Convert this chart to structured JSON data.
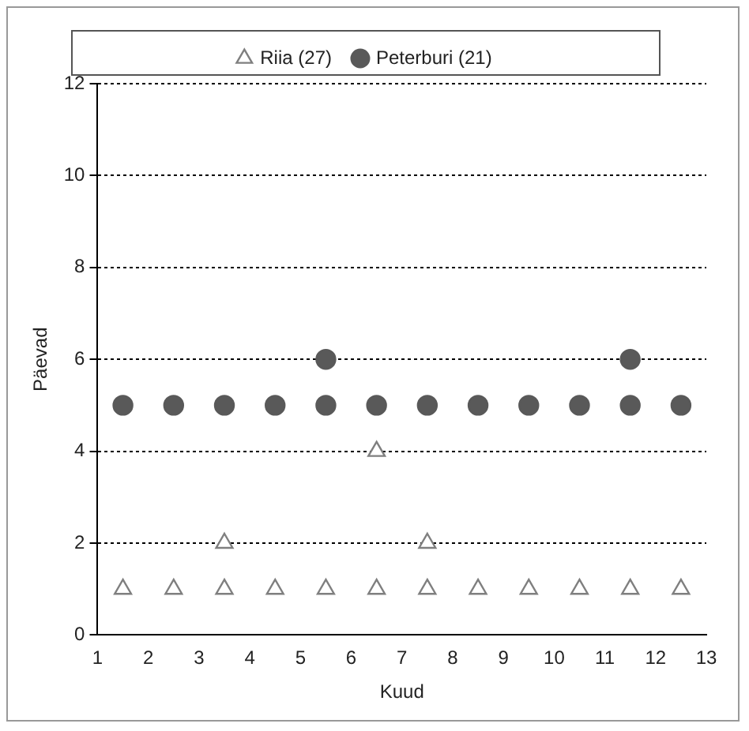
{
  "chart_data": {
    "type": "scatter",
    "xlabel": "Kuud",
    "ylabel": "Päevad",
    "xlim": [
      1,
      13
    ],
    "xticks": [
      1,
      2,
      3,
      4,
      5,
      6,
      7,
      8,
      9,
      10,
      11,
      12,
      13
    ],
    "ylim": [
      0,
      12
    ],
    "yticks": [
      0,
      2,
      4,
      6,
      8,
      10,
      12
    ],
    "grid": "y",
    "legend": "top",
    "series": [
      {
        "name": "Riia (27)",
        "color": "#7f7f7f",
        "marker": "triangle",
        "x": [
          1.5,
          2.5,
          3.5,
          4.5,
          5.5,
          6.5,
          7.5,
          8.5,
          9.5,
          10.5,
          11.5,
          12.5,
          3.5,
          6.5,
          7.5
        ],
        "values": [
          1,
          1,
          1,
          1,
          1,
          1,
          1,
          1,
          1,
          1,
          1,
          1,
          2,
          4,
          2
        ]
      },
      {
        "name": "Peterburi (21)",
        "color": "#595959",
        "marker": "circle",
        "x": [
          1.5,
          2.5,
          3.5,
          4.5,
          5.5,
          6.5,
          7.5,
          8.5,
          9.5,
          10.5,
          11.5,
          12.5,
          5.5,
          11.5
        ],
        "values": [
          5,
          5,
          5,
          5,
          5,
          5,
          5,
          5,
          5,
          5,
          5,
          5,
          6,
          6
        ]
      }
    ]
  }
}
